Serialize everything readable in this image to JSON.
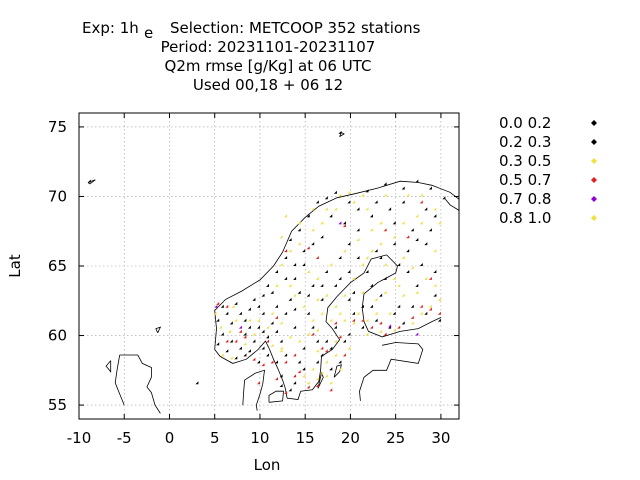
{
  "chart_data": {
    "type": "scatter",
    "title_lines": [
      "Exp: 1h",
      "Period: 20231101-20231107",
      "Q2m rmse [g/Kg] at  06 UTC",
      "Used  00,18  + 06 12"
    ],
    "title_subscript": "e",
    "title_line1_rest": "Selection: METCOOP    352 stations",
    "xlabel": "Lon",
    "ylabel": "Lat",
    "xlim": [
      -10,
      32
    ],
    "ylim": [
      54,
      76
    ],
    "xticks": [
      -10,
      -5,
      0,
      5,
      10,
      15,
      20,
      25,
      30
    ],
    "yticks": [
      55,
      60,
      65,
      70,
      75
    ],
    "grid": true,
    "legend_position": "right",
    "background": "coastline-map",
    "series": [
      {
        "name": "0.0 0.2",
        "color": "#000000",
        "points": [
          [
            19.0,
            74.5
          ],
          [
            3.2,
            56.5
          ],
          [
            6.0,
            62.0
          ],
          [
            6.5,
            61.5
          ],
          [
            7.0,
            60.8
          ],
          [
            8.5,
            61.0
          ],
          [
            9.5,
            62.5
          ],
          [
            10.5,
            62.8
          ],
          [
            11.0,
            63.5
          ],
          [
            12.0,
            64.5
          ],
          [
            13.0,
            65.5
          ],
          [
            13.5,
            66.8
          ],
          [
            14.5,
            67.5
          ],
          [
            15.5,
            68.5
          ],
          [
            16.5,
            69.5
          ],
          [
            17.5,
            69.8
          ],
          [
            18.5,
            70.2
          ],
          [
            20.0,
            69.5
          ],
          [
            22.0,
            70.3
          ],
          [
            24.0,
            70.8
          ],
          [
            26.0,
            70.5
          ],
          [
            27.5,
            71.0
          ],
          [
            29.0,
            70.5
          ],
          [
            30.5,
            69.8
          ],
          [
            29.5,
            68.5
          ],
          [
            27.0,
            67.5
          ],
          [
            25.0,
            66.5
          ],
          [
            23.0,
            66.0
          ],
          [
            21.0,
            65.5
          ],
          [
            20.0,
            64.5
          ],
          [
            18.5,
            63.5
          ],
          [
            17.0,
            62.5
          ],
          [
            15.5,
            61.5
          ],
          [
            14.0,
            60.5
          ],
          [
            12.5,
            59.5
          ],
          [
            11.0,
            58.5
          ],
          [
            10.5,
            59.0
          ],
          [
            9.5,
            59.5
          ],
          [
            8.5,
            58.5
          ],
          [
            8.0,
            59.0
          ],
          [
            7.0,
            59.5
          ],
          [
            6.0,
            60.0
          ],
          [
            5.5,
            59.3
          ],
          [
            9.0,
            60.5
          ],
          [
            11.5,
            60.8
          ],
          [
            13.0,
            61.5
          ],
          [
            16.0,
            60.5
          ],
          [
            17.5,
            59.5
          ],
          [
            18.5,
            60.5
          ],
          [
            21.5,
            62.0
          ],
          [
            23.5,
            62.8
          ],
          [
            25.5,
            62.0
          ],
          [
            27.5,
            63.5
          ],
          [
            29.5,
            62.8
          ],
          [
            28.0,
            65.0
          ],
          [
            26.5,
            64.5
          ],
          [
            24.0,
            64.0
          ],
          [
            22.5,
            63.5
          ],
          [
            20.5,
            61.5
          ],
          [
            19.5,
            59.5
          ],
          [
            16.5,
            58.0
          ],
          [
            15.0,
            57.5
          ],
          [
            14.0,
            56.5
          ],
          [
            18.0,
            57.5
          ],
          [
            13.5,
            56.0
          ],
          [
            12.5,
            57.0
          ],
          [
            10.5,
            61.5
          ],
          [
            12.0,
            62.0
          ],
          [
            14.5,
            63.0
          ],
          [
            16.0,
            63.5
          ],
          [
            17.5,
            64.5
          ],
          [
            19.0,
            65.5
          ],
          [
            20.0,
            66.5
          ],
          [
            21.0,
            67.5
          ],
          [
            22.5,
            68.5
          ],
          [
            24.5,
            69.0
          ],
          [
            26.0,
            69.5
          ],
          [
            28.5,
            69.0
          ],
          [
            15.0,
            66.0
          ],
          [
            14.0,
            65.0
          ],
          [
            13.0,
            64.0
          ],
          [
            11.5,
            63.0
          ],
          [
            10.0,
            62.0
          ],
          [
            -8.7,
            71.0
          ]
        ]
      },
      {
        "name": "0.2 0.3",
        "color": "#000000",
        "points": [
          [
            5.5,
            61.0
          ],
          [
            7.5,
            62.2
          ],
          [
            8.0,
            61.5
          ],
          [
            9.0,
            61.8
          ],
          [
            10.0,
            60.5
          ],
          [
            11.0,
            59.8
          ],
          [
            12.0,
            60.2
          ],
          [
            13.5,
            62.5
          ],
          [
            14.0,
            64.0
          ],
          [
            15.0,
            65.0
          ],
          [
            16.0,
            66.5
          ],
          [
            17.0,
            67.0
          ],
          [
            18.0,
            68.5
          ],
          [
            19.5,
            68.0
          ],
          [
            21.0,
            69.0
          ],
          [
            23.0,
            69.5
          ],
          [
            25.0,
            68.0
          ],
          [
            26.5,
            66.0
          ],
          [
            28.5,
            66.5
          ],
          [
            29.5,
            64.5
          ],
          [
            27.0,
            62.0
          ],
          [
            25.0,
            61.5
          ],
          [
            23.0,
            61.0
          ],
          [
            21.5,
            60.5
          ],
          [
            20.0,
            60.0
          ],
          [
            18.0,
            59.0
          ],
          [
            16.5,
            59.5
          ],
          [
            15.0,
            59.0
          ],
          [
            13.0,
            58.5
          ],
          [
            12.0,
            58.0
          ],
          [
            10.0,
            58.0
          ],
          [
            9.0,
            58.8
          ],
          [
            7.5,
            58.3
          ],
          [
            6.5,
            58.8
          ],
          [
            8.5,
            60.0
          ],
          [
            10.5,
            60.2
          ],
          [
            14.0,
            61.8
          ],
          [
            15.5,
            62.8
          ],
          [
            17.0,
            63.5
          ],
          [
            19.0,
            64.0
          ],
          [
            20.5,
            63.0
          ],
          [
            22.0,
            64.5
          ],
          [
            23.5,
            65.5
          ],
          [
            25.5,
            65.0
          ],
          [
            27.5,
            66.8
          ],
          [
            29.0,
            67.5
          ],
          [
            20.0,
            62.5
          ],
          [
            22.5,
            62.0
          ],
          [
            24.5,
            60.5
          ],
          [
            26.0,
            60.8
          ],
          [
            28.5,
            61.5
          ],
          [
            30.0,
            61.0
          ],
          [
            12.5,
            56.3
          ],
          [
            14.5,
            58.0
          ],
          [
            17.0,
            58.5
          ],
          [
            19.0,
            58.0
          ]
        ]
      },
      {
        "name": "0.3 0.5",
        "color": "#f0e040",
        "points": [
          [
            5.2,
            61.5
          ],
          [
            5.8,
            60.5
          ],
          [
            6.8,
            60.2
          ],
          [
            7.5,
            61.0
          ],
          [
            9.0,
            61.0
          ],
          [
            10.0,
            61.0
          ],
          [
            11.5,
            61.5
          ],
          [
            12.5,
            60.8
          ],
          [
            14.0,
            62.8
          ],
          [
            15.0,
            62.0
          ],
          [
            16.0,
            61.0
          ],
          [
            17.0,
            61.5
          ],
          [
            18.0,
            61.0
          ],
          [
            19.0,
            61.5
          ],
          [
            17.5,
            62.8
          ],
          [
            16.5,
            64.0
          ],
          [
            18.0,
            65.0
          ],
          [
            19.5,
            66.0
          ],
          [
            21.0,
            66.8
          ],
          [
            22.5,
            67.5
          ],
          [
            23.5,
            68.0
          ],
          [
            22.0,
            69.0
          ],
          [
            20.5,
            69.5
          ],
          [
            19.0,
            70.0
          ],
          [
            18.5,
            69.0
          ],
          [
            17.0,
            68.0
          ],
          [
            16.0,
            67.5
          ],
          [
            14.5,
            66.5
          ],
          [
            13.5,
            66.0
          ],
          [
            12.5,
            65.0
          ],
          [
            12.0,
            63.5
          ],
          [
            15.5,
            60.0
          ],
          [
            16.5,
            58.8
          ],
          [
            17.5,
            58.0
          ],
          [
            18.5,
            58.5
          ],
          [
            19.5,
            61.0
          ],
          [
            20.5,
            60.8
          ],
          [
            22.0,
            60.0
          ],
          [
            23.5,
            60.2
          ],
          [
            25.0,
            60.3
          ],
          [
            27.0,
            60.8
          ],
          [
            28.0,
            61.5
          ],
          [
            29.0,
            62.0
          ],
          [
            30.0,
            62.5
          ],
          [
            29.5,
            63.5
          ],
          [
            28.5,
            64.0
          ],
          [
            27.0,
            64.8
          ],
          [
            25.5,
            63.5
          ],
          [
            24.0,
            63.0
          ],
          [
            23.0,
            62.5
          ],
          [
            21.5,
            63.0
          ],
          [
            22.0,
            65.5
          ],
          [
            23.5,
            66.5
          ],
          [
            25.0,
            67.0
          ],
          [
            26.0,
            68.0
          ],
          [
            27.5,
            68.5
          ],
          [
            15.0,
            57.0
          ],
          [
            16.0,
            57.5
          ],
          [
            14.5,
            59.5
          ],
          [
            13.5,
            59.8
          ],
          [
            12.5,
            59.0
          ],
          [
            11.5,
            59.2
          ],
          [
            11.0,
            60.5
          ],
          [
            9.5,
            60.0
          ],
          [
            8.5,
            59.3
          ],
          [
            7.0,
            58.3
          ],
          [
            6.0,
            58.5
          ],
          [
            15.5,
            56.5
          ],
          [
            16.5,
            56.8
          ],
          [
            17.5,
            57.0
          ],
          [
            18.0,
            56.5
          ],
          [
            19.0,
            57.5
          ],
          [
            18.5,
            59.5
          ],
          [
            20.0,
            59.0
          ],
          [
            21.0,
            61.5
          ],
          [
            22.0,
            61.0
          ],
          [
            24.5,
            61.5
          ],
          [
            26.0,
            62.8
          ],
          [
            27.5,
            63.0
          ],
          [
            29.5,
            66.0
          ],
          [
            30.0,
            68.0
          ],
          [
            28.0,
            70.0
          ],
          [
            26.5,
            70.0
          ],
          [
            24.0,
            70.0
          ],
          [
            21.5,
            70.0
          ],
          [
            20.0,
            70.2
          ],
          [
            15.5,
            64.5
          ],
          [
            13.5,
            63.5
          ],
          [
            16.5,
            62.5
          ],
          [
            18.5,
            62.0
          ],
          [
            19.5,
            62.8
          ],
          [
            20.5,
            64.0
          ],
          [
            21.5,
            65.0
          ],
          [
            22.5,
            66.0
          ],
          [
            24.0,
            65.0
          ],
          [
            25.0,
            64.0
          ],
          [
            26.0,
            65.5
          ],
          [
            28.0,
            68.0
          ],
          [
            29.5,
            69.0
          ],
          [
            12.5,
            67.0
          ],
          [
            13.0,
            68.5
          ],
          [
            14.5,
            68.0
          ],
          [
            16.0,
            69.0
          ],
          [
            17.5,
            69.0
          ]
        ]
      },
      {
        "name": "0.5 0.7",
        "color": "#e02020",
        "points": [
          [
            5.5,
            62.2
          ],
          [
            6.5,
            59.5
          ],
          [
            7.5,
            59.5
          ],
          [
            8.0,
            60.2
          ],
          [
            9.5,
            58.2
          ],
          [
            10.5,
            57.8
          ],
          [
            11.5,
            58.0
          ],
          [
            12.0,
            61.2
          ],
          [
            13.0,
            58.0
          ],
          [
            14.5,
            57.3
          ],
          [
            15.5,
            56.2
          ],
          [
            16.5,
            56.3
          ],
          [
            17.5,
            58.8
          ],
          [
            18.5,
            60.8
          ],
          [
            19.5,
            58.5
          ],
          [
            22.5,
            60.5
          ],
          [
            23.5,
            60.8
          ],
          [
            25.5,
            60.5
          ],
          [
            27.0,
            61.2
          ],
          [
            29.0,
            61.8
          ],
          [
            26.5,
            67.0
          ],
          [
            28.0,
            69.5
          ],
          [
            24.0,
            67.5
          ],
          [
            19.5,
            67.8
          ],
          [
            15.5,
            66.2
          ],
          [
            14.0,
            58.5
          ],
          [
            13.0,
            55.8
          ],
          [
            10.0,
            56.5
          ],
          [
            12.0,
            56.8
          ],
          [
            17.0,
            59.0
          ],
          [
            16.0,
            60.0
          ],
          [
            19.0,
            59.8
          ],
          [
            21.5,
            61.0
          ],
          [
            16.5,
            65.5
          ],
          [
            13.0,
            66.0
          ],
          [
            6.5,
            62.0
          ],
          [
            8.5,
            59.8
          ],
          [
            11.0,
            59.5
          ],
          [
            14.0,
            57.0
          ],
          [
            18.0,
            56.0
          ],
          [
            20.5,
            61.0
          ],
          [
            24.0,
            60.0
          ],
          [
            28.0,
            62.0
          ],
          [
            30.0,
            61.5
          ],
          [
            29.0,
            64.0
          ]
        ]
      },
      {
        "name": "0.7 0.8",
        "color": "#9400d3",
        "points": [
          [
            5.3,
            62.0
          ],
          [
            8.0,
            60.5
          ],
          [
            19.0,
            68.0
          ],
          [
            24.5,
            60.6
          ],
          [
            27.5,
            60.0
          ]
        ]
      },
      {
        "name": "0.8 1.0",
        "color": "#f0e040",
        "points": [
          [
            7.2,
            62.0
          ],
          [
            16.5,
            60.3
          ],
          [
            12.5,
            58.8
          ],
          [
            17.0,
            57.2
          ],
          [
            23.0,
            61.5
          ]
        ]
      }
    ]
  }
}
